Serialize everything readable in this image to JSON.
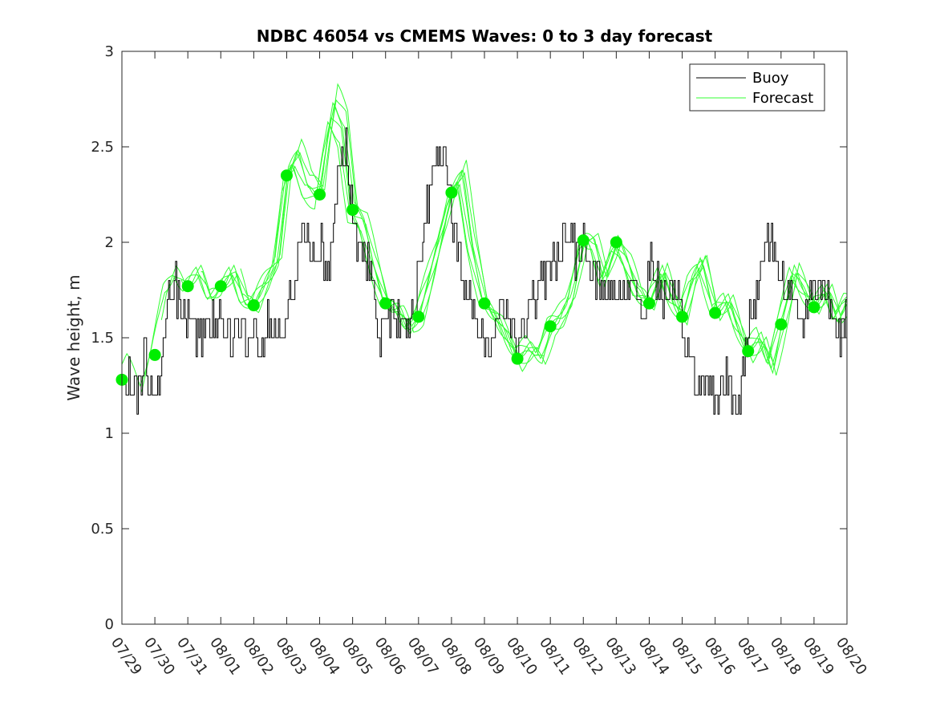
{
  "chart_data": {
    "type": "line",
    "title": "NDBC 46054 vs CMEMS Waves: 0 to 3 day forecast",
    "xlabel": "",
    "ylabel": "Wave height, m",
    "xlim": [
      0,
      22
    ],
    "ylim": [
      0,
      3
    ],
    "y_ticks": [
      "0",
      "0.5",
      "1",
      "1.5",
      "2",
      "2.5",
      "3"
    ],
    "x_tick_labels": [
      "07/29",
      "07/30",
      "07/31",
      "08/01",
      "08/02",
      "08/03",
      "08/04",
      "08/05",
      "08/06",
      "08/07",
      "08/08",
      "08/09",
      "08/10",
      "08/11",
      "08/12",
      "08/13",
      "08/14",
      "08/15",
      "08/16",
      "08/17",
      "08/18",
      "08/19",
      "08/20"
    ],
    "grid": false,
    "legend": {
      "position": "top-right",
      "entries": [
        "Buoy",
        "Forecast"
      ]
    },
    "colors": {
      "buoy": "#000000",
      "forecast": "#33ff33",
      "marker": "#00ee00",
      "axis": "#262626"
    },
    "buoy_keypoints": {
      "x": [
        0,
        0.3,
        0.5,
        0.7,
        0.9,
        1.0,
        1.2,
        1.4,
        1.6,
        1.8,
        2.0,
        2.3,
        2.6,
        3.0,
        3.3,
        3.6,
        3.8,
        4.0,
        4.2,
        4.4,
        4.6,
        4.8,
        5.0,
        5.2,
        5.5,
        5.8,
        6.0,
        6.2,
        6.4,
        6.6,
        6.8,
        7.0,
        7.2,
        7.5,
        7.8,
        8.0,
        8.3,
        8.6,
        8.9,
        9.2,
        9.5,
        9.8,
        10.0,
        10.3,
        10.6,
        10.8,
        11.0,
        11.2,
        11.5,
        11.8,
        12.0,
        12.3,
        12.6,
        12.9,
        13.2,
        13.5,
        13.8,
        14.0,
        14.3,
        14.6,
        14.9,
        15.2,
        15.5,
        15.8,
        16.0,
        16.3,
        16.6,
        16.9,
        17.2,
        17.5,
        17.8,
        18.0,
        18.3,
        18.5,
        18.7,
        19.0,
        19.3,
        19.6,
        20.0,
        20.3,
        20.6,
        20.9,
        21.2,
        21.5,
        21.8,
        22.0
      ],
      "y": [
        1.25,
        1.3,
        1.2,
        1.4,
        1.15,
        1.2,
        1.4,
        1.7,
        1.8,
        1.6,
        1.65,
        1.5,
        1.55,
        1.6,
        1.5,
        1.6,
        1.45,
        1.55,
        1.4,
        1.6,
        1.55,
        1.5,
        1.7,
        1.75,
        2.1,
        1.95,
        2.0,
        1.85,
        2.05,
        2.4,
        2.5,
        2.1,
        2.0,
        1.9,
        1.5,
        1.7,
        1.55,
        1.6,
        1.7,
        2.1,
        2.45,
        2.5,
        2.15,
        1.8,
        1.65,
        1.55,
        1.5,
        1.45,
        1.7,
        1.6,
        1.45,
        1.6,
        1.75,
        1.85,
        1.95,
        2.05,
        1.9,
        2.0,
        1.85,
        1.75,
        1.7,
        1.75,
        1.8,
        1.6,
        1.9,
        1.75,
        1.7,
        1.65,
        1.4,
        1.2,
        1.35,
        1.15,
        1.3,
        1.15,
        1.15,
        1.55,
        1.8,
        2.05,
        1.85,
        1.7,
        1.6,
        1.75,
        1.8,
        1.65,
        1.55,
        1.7
      ]
    },
    "forecast_markers": {
      "x": [
        0,
        1,
        2,
        3,
        4,
        5,
        6,
        7,
        8,
        9,
        10,
        11,
        12,
        13,
        14,
        15,
        16,
        17,
        18,
        19,
        20,
        21
      ],
      "y": [
        1.28,
        1.41,
        1.77,
        1.77,
        1.67,
        2.35,
        2.25,
        2.17,
        1.68,
        1.61,
        2.26,
        1.68,
        1.39,
        1.56,
        2.01,
        2.0,
        1.68,
        1.61,
        1.63,
        1.43,
        1.57,
        1.66
      ]
    },
    "forecast_keypoints": {
      "x": [
        0,
        0.3,
        0.7,
        1.0,
        1.4,
        1.7,
        2.0,
        2.4,
        2.7,
        3.0,
        3.4,
        3.7,
        4.0,
        4.4,
        4.7,
        5.0,
        5.3,
        5.6,
        6.0,
        6.2,
        6.4,
        6.7,
        7.0,
        7.3,
        7.6,
        8.0,
        8.4,
        8.7,
        9.0,
        9.4,
        9.7,
        10.0,
        10.3,
        10.6,
        11.0,
        11.4,
        11.7,
        12.0,
        12.4,
        12.7,
        13.0,
        13.3,
        13.6,
        14.0,
        14.3,
        14.6,
        15.0,
        15.3,
        15.6,
        16.0,
        16.4,
        16.7,
        17.0,
        17.3,
        17.6,
        18.0,
        18.4,
        18.7,
        19.0,
        19.4,
        19.7,
        20.0,
        20.4,
        20.7,
        21.0,
        21.4,
        21.7,
        22.0
      ],
      "y": [
        1.28,
        1.35,
        1.2,
        1.4,
        1.75,
        1.85,
        1.77,
        1.85,
        1.72,
        1.75,
        1.85,
        1.7,
        1.67,
        1.8,
        1.9,
        2.35,
        2.45,
        2.3,
        2.25,
        2.5,
        2.7,
        2.6,
        2.17,
        2.1,
        1.9,
        1.68,
        1.65,
        1.55,
        1.61,
        1.85,
        2.05,
        2.26,
        2.35,
        2.0,
        1.68,
        1.6,
        1.5,
        1.39,
        1.45,
        1.4,
        1.56,
        1.6,
        1.7,
        2.01,
        2.0,
        1.8,
        2.0,
        1.9,
        1.75,
        1.68,
        1.85,
        1.7,
        1.61,
        1.8,
        1.9,
        1.63,
        1.7,
        1.55,
        1.43,
        1.5,
        1.35,
        1.57,
        1.85,
        1.75,
        1.66,
        1.75,
        1.6,
        1.7
      ]
    }
  }
}
